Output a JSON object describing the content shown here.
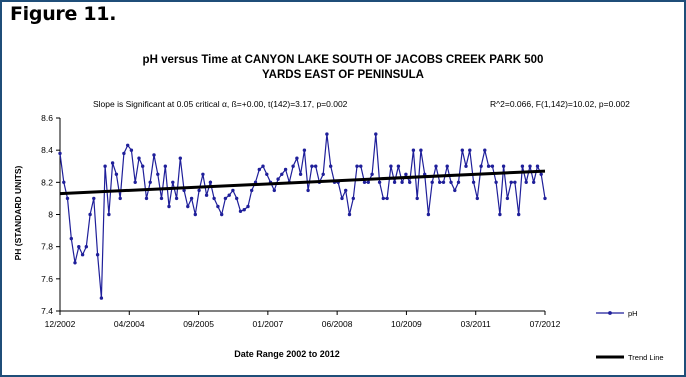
{
  "figure_label": "Figure 11.",
  "chart_data": {
    "type": "line",
    "title_line1": "pH versus Time at CANYON LAKE SOUTH OF JACOBS CREEK PARK 500",
    "title_line2": "YARDS EAST OF PENINSULA",
    "annotation_left": "Slope is Significant at 0.05 critical α, ß=+0.00, t(142)=3.17, p=0.002",
    "annotation_right": "R^2=0.066, F(1,142)=10.02, p=0.002",
    "xlabel": "Date Range 2002 to 2012",
    "ylabel": "PH (STANDARD UNITS)",
    "ylim": [
      7.4,
      8.6
    ],
    "yticks": [
      "8.6",
      "8.4",
      "8.2",
      "8",
      "7.8",
      "7.6",
      "7.4"
    ],
    "xtick_labels": [
      "12/2002",
      "04/2004",
      "09/2005",
      "01/2007",
      "06/2008",
      "10/2009",
      "03/2011",
      "07/2012"
    ],
    "legend": {
      "placement": "right",
      "entries": [
        "pH",
        "Trend Line"
      ]
    },
    "colors": {
      "series": "#1f1f9a",
      "trend": "#000000"
    },
    "trend": {
      "start": 8.13,
      "end": 8.27
    },
    "series": [
      {
        "name": "pH",
        "values": [
          8.38,
          8.2,
          8.1,
          7.85,
          7.7,
          7.8,
          7.75,
          7.8,
          8.0,
          8.1,
          7.75,
          7.48,
          8.3,
          8.0,
          8.32,
          8.25,
          8.1,
          8.38,
          8.43,
          8.4,
          8.2,
          8.35,
          8.3,
          8.1,
          8.2,
          8.37,
          8.25,
          8.1,
          8.3,
          8.05,
          8.2,
          8.1,
          8.35,
          8.15,
          8.05,
          8.1,
          8.0,
          8.15,
          8.25,
          8.12,
          8.2,
          8.1,
          8.05,
          8.0,
          8.1,
          8.12,
          8.15,
          8.1,
          8.02,
          8.03,
          8.05,
          8.15,
          8.2,
          8.28,
          8.3,
          8.25,
          8.2,
          8.15,
          8.22,
          8.25,
          8.28,
          8.2,
          8.3,
          8.35,
          8.25,
          8.4,
          8.15,
          8.3,
          8.3,
          8.2,
          8.25,
          8.5,
          8.3,
          8.2,
          8.2,
          8.1,
          8.15,
          8.0,
          8.1,
          8.3,
          8.3,
          8.2,
          8.2,
          8.25,
          8.5,
          8.2,
          8.1,
          8.1,
          8.3,
          8.2,
          8.3,
          8.2,
          8.25,
          8.2,
          8.4,
          8.1,
          8.4,
          8.25,
          8.0,
          8.2,
          8.3,
          8.2,
          8.2,
          8.3,
          8.2,
          8.15,
          8.2,
          8.4,
          8.3,
          8.4,
          8.2,
          8.1,
          8.3,
          8.4,
          8.3,
          8.3,
          8.2,
          8.0,
          8.3,
          8.1,
          8.2,
          8.2,
          8.0,
          8.3,
          8.2,
          8.3,
          8.2,
          8.3,
          8.25,
          8.1
        ]
      }
    ]
  }
}
